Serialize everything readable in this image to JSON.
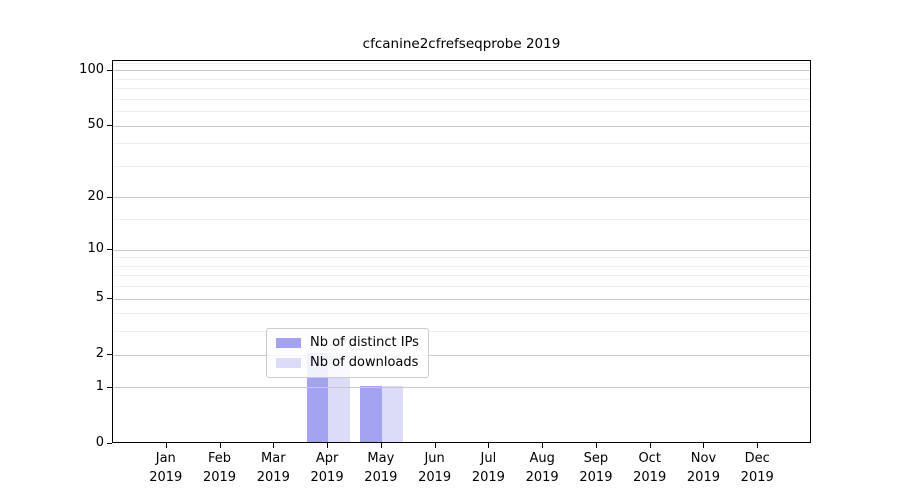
{
  "title": "cfcanine2cfrefseqprobe 2019",
  "chart_data": {
    "type": "bar",
    "title": "cfcanine2cfrefseqprobe 2019",
    "categories": [
      "Jan",
      "Feb",
      "Mar",
      "Apr",
      "May",
      "Jun",
      "Jul",
      "Aug",
      "Sep",
      "Oct",
      "Nov",
      "Dec"
    ],
    "year_label": "2019",
    "series": [
      {
        "name": "Nb of distinct IPs",
        "color": "#a3a3f2",
        "values": [
          0,
          0,
          0,
          2,
          1,
          0,
          0,
          0,
          0,
          0,
          0,
          0
        ]
      },
      {
        "name": "Nb of downloads",
        "color": "#dcdcf8",
        "values": [
          0,
          0,
          0,
          2,
          1,
          0,
          0,
          0,
          0,
          0,
          0,
          0
        ]
      }
    ],
    "yscale": "log1p",
    "ylim": [
      0,
      113
    ],
    "xlim": [
      -1,
      12
    ],
    "yticks": [
      0,
      1,
      2,
      5,
      10,
      20,
      50,
      100
    ],
    "yticks_minor": [
      3,
      4,
      6,
      7,
      8,
      9,
      15,
      30,
      40,
      60,
      70,
      80,
      90,
      110
    ],
    "bar_width_units": 0.4,
    "grid": {
      "major_color": "#c9c9c9",
      "minor_color": "#efefef",
      "grid_above_bars": true
    },
    "legend": {
      "position": "lower center",
      "bg": "#ffffff",
      "border_color": "#cccccc"
    },
    "axis_color": "#000000"
  }
}
